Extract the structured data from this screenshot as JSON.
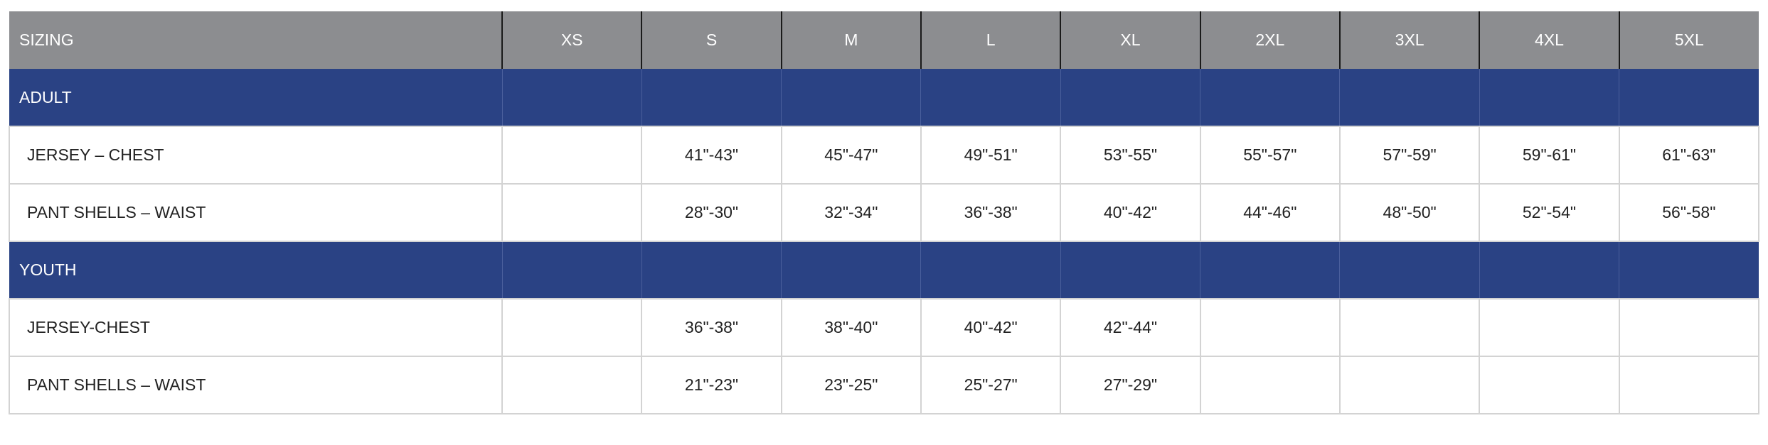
{
  "header": [
    "SIZING",
    "XS",
    "S",
    "M",
    "L",
    "XL",
    "2XL",
    "3XL",
    "4XL",
    "5XL"
  ],
  "colors": {
    "header_bg": "#8c8d90",
    "section_bg": "#2a4284"
  },
  "sections": [
    {
      "label": "ADULT",
      "rows": [
        {
          "label": "JERSEY – CHEST",
          "values": [
            "",
            "41\"-43\"",
            "45\"-47\"",
            "49\"-51\"",
            "53\"-55\"",
            "55\"-57\"",
            "57\"-59\"",
            "59\"-61\"",
            "61\"-63\""
          ]
        },
        {
          "label": "PANT SHELLS – WAIST",
          "values": [
            "",
            "28\"-30\"",
            "32\"-34\"",
            "36\"-38\"",
            "40\"-42\"",
            "44\"-46\"",
            "48\"-50\"",
            "52\"-54\"",
            "56\"-58\""
          ]
        }
      ]
    },
    {
      "label": "YOUTH",
      "rows": [
        {
          "label": "JERSEY-CHEST",
          "values": [
            "",
            "36\"-38\"",
            "38\"-40\"",
            "40\"-42\"",
            "42\"-44\"",
            "",
            "",
            "",
            ""
          ]
        },
        {
          "label": "PANT SHELLS – WAIST",
          "values": [
            "",
            "21\"-23\"",
            "23\"-25\"",
            "25\"-27\"",
            "27\"-29\"",
            "",
            "",
            "",
            ""
          ]
        }
      ]
    }
  ]
}
